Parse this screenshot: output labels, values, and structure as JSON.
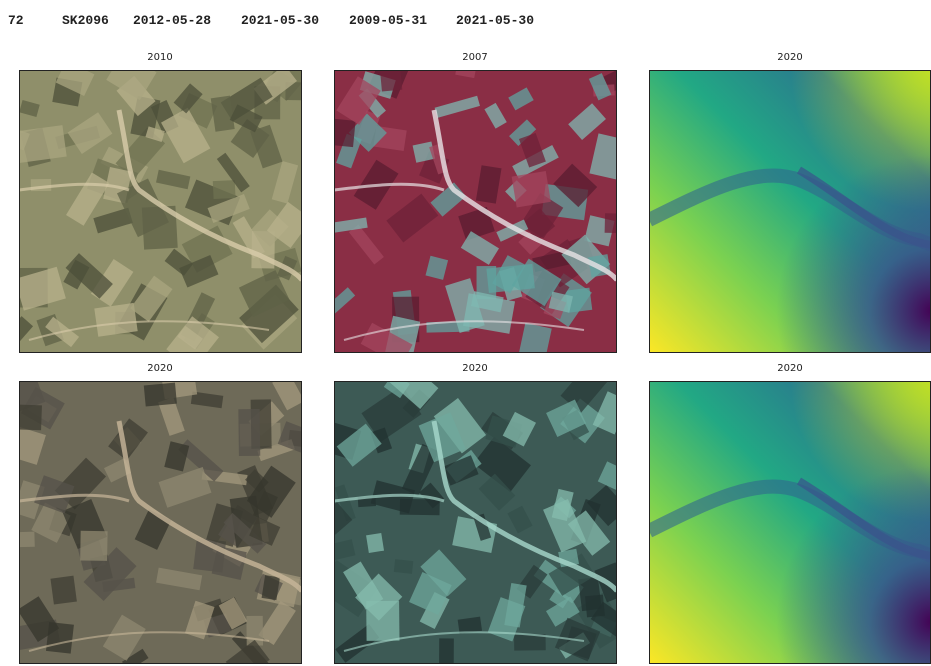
{
  "header": {
    "cells": [
      "72",
      "SK2096",
      "2012-05-28",
      "2021-05-30",
      "2009-05-31",
      "2021-05-30"
    ]
  },
  "panels": [
    {
      "title": "2010"
    },
    {
      "title": "2007"
    },
    {
      "title": "2020"
    },
    {
      "title": "2020"
    },
    {
      "title": "2020"
    },
    {
      "title": "2020"
    }
  ]
}
